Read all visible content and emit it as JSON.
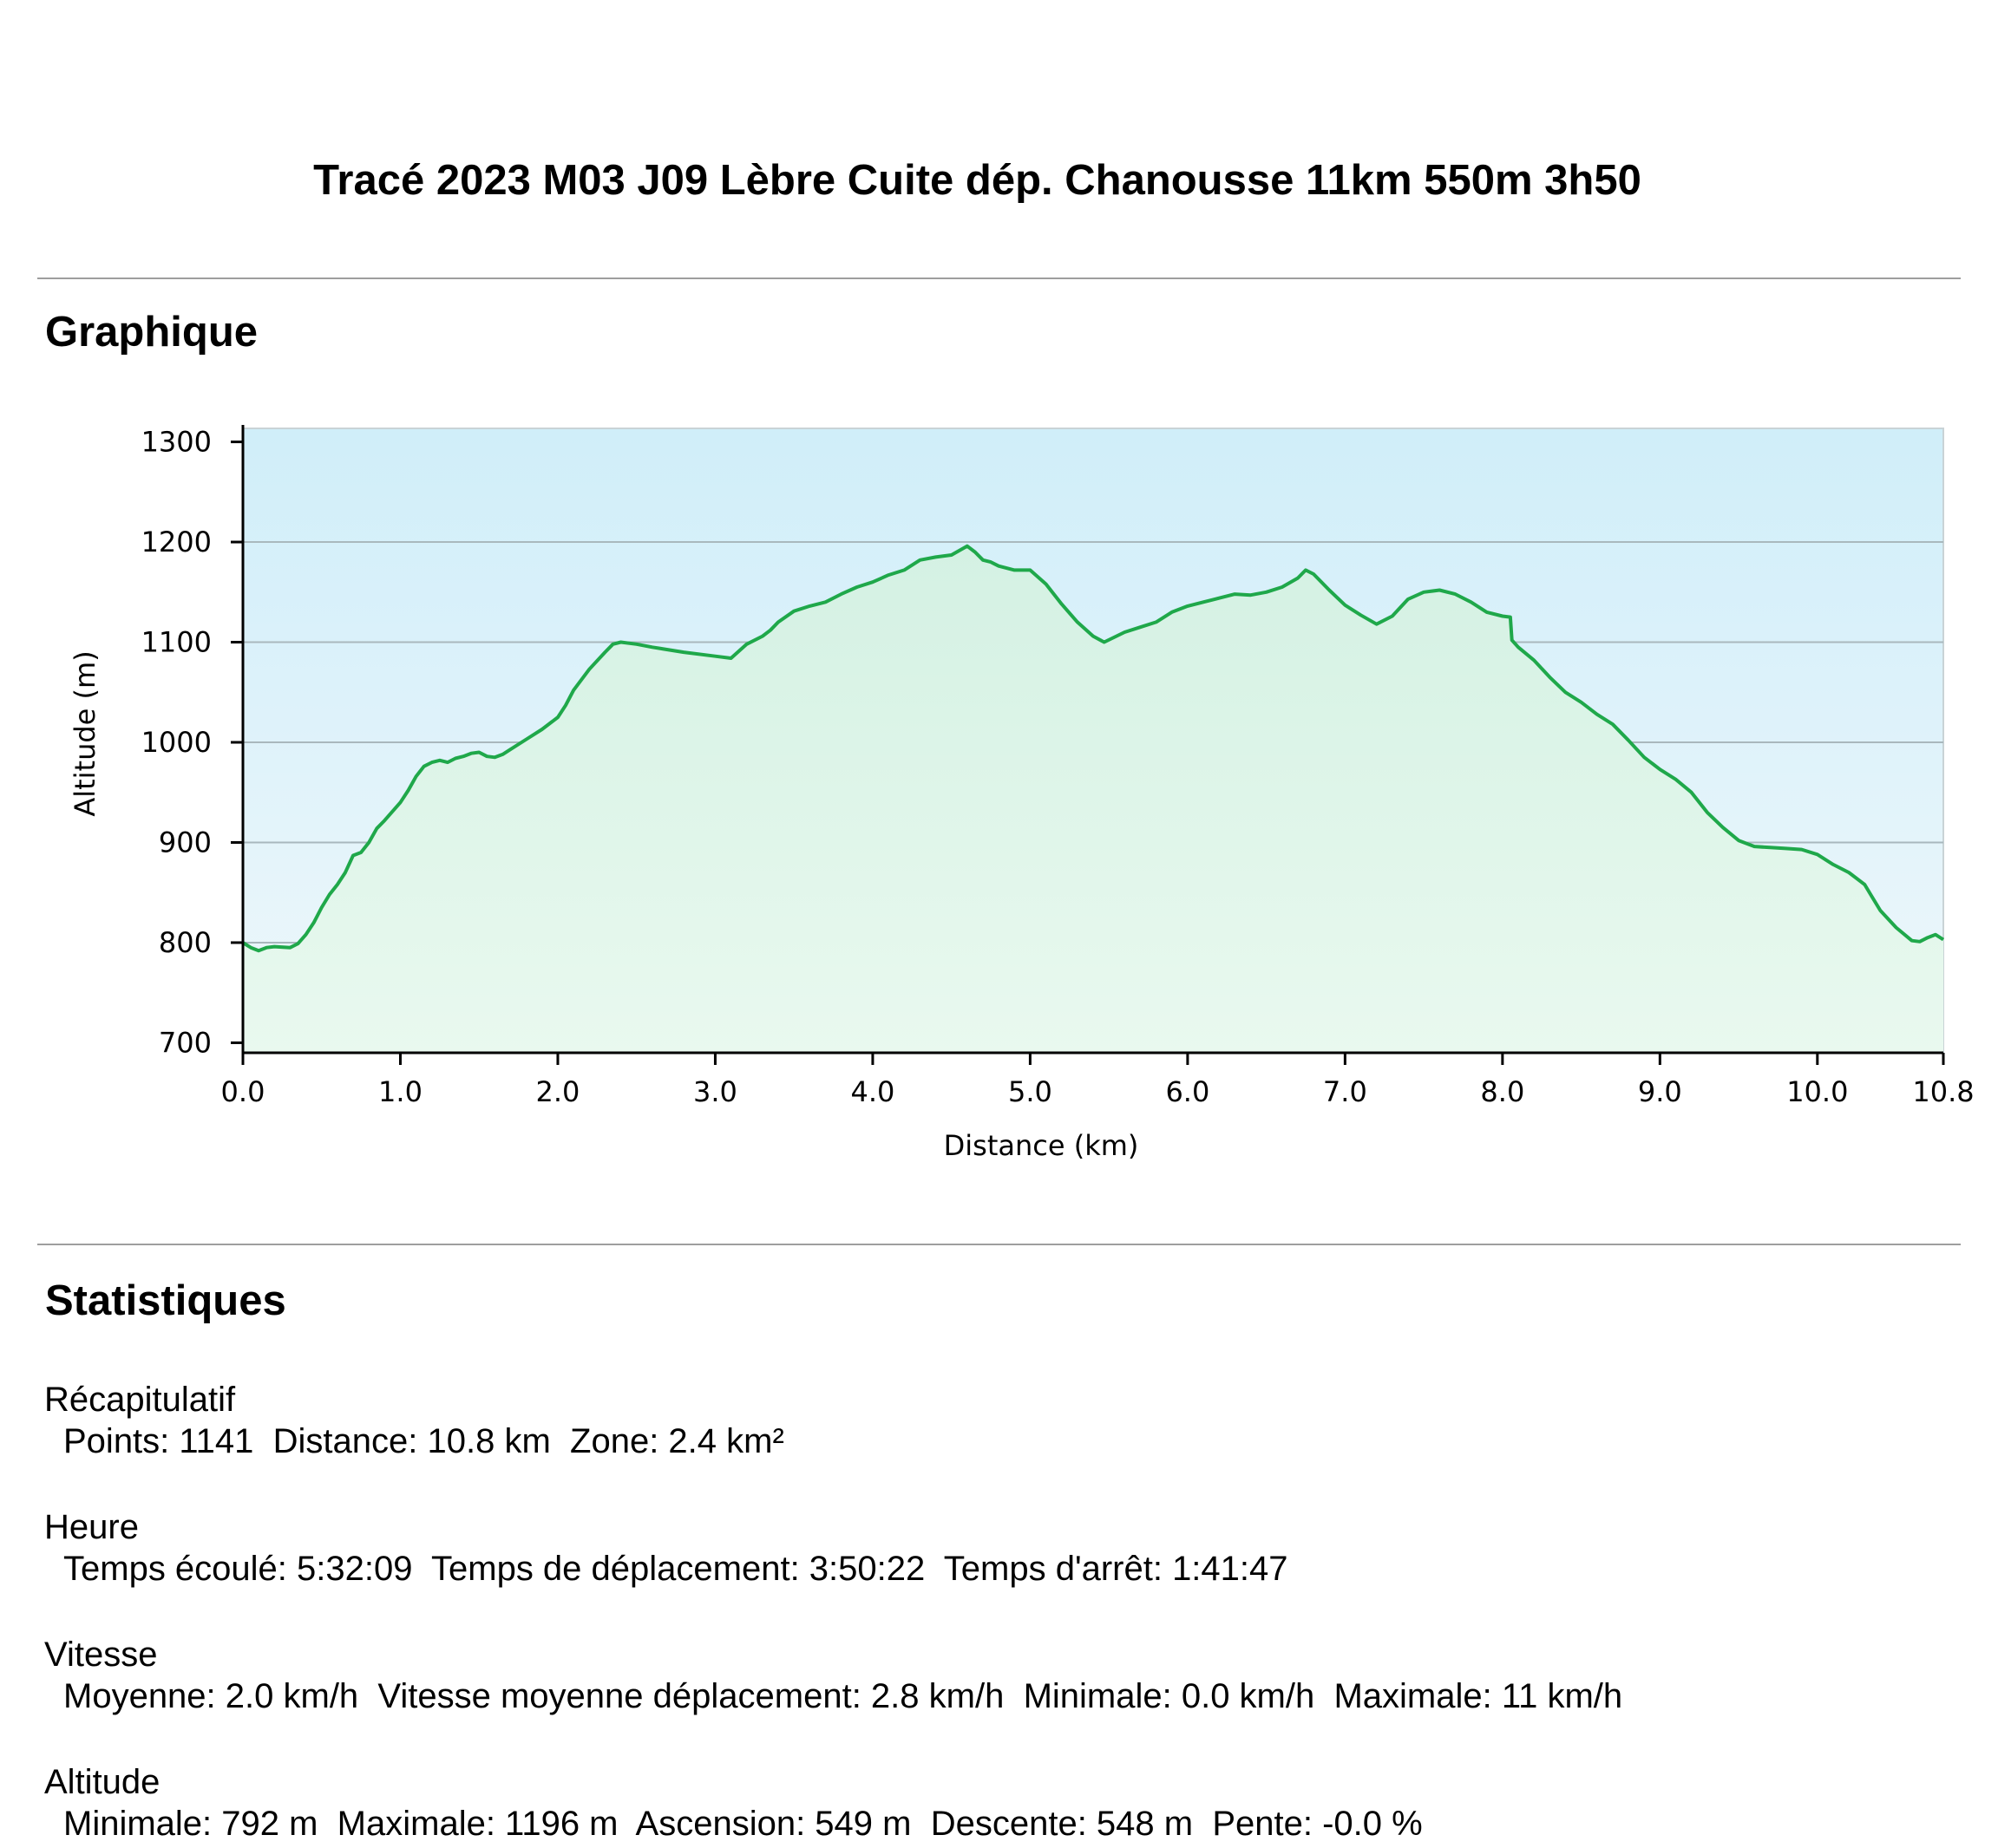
{
  "title": "Tracé 2023 M03 J09 Lèbre Cuite dép. Chanousse 11km 550m 3h50",
  "graph_section": {
    "heading": "Graphique"
  },
  "stats_section": {
    "heading": "Statistiques",
    "groups": [
      {
        "label": "Récapitulatif",
        "items": [
          "Points: 1141",
          "Distance: 10.8 km",
          "Zone: 2.4 km²"
        ]
      },
      {
        "label": "Heure",
        "items": [
          "Temps écoulé: 5:32:09",
          "Temps de déplacement: 3:50:22",
          "Temps d'arrêt: 1:41:47"
        ]
      },
      {
        "label": "Vitesse",
        "items": [
          "Moyenne: 2.0 km/h",
          "Vitesse moyenne déplacement: 2.8 km/h",
          "Minimale: 0.0 km/h",
          "Maximale: 11 km/h"
        ]
      },
      {
        "label": "Altitude",
        "items": [
          "Minimale: 792 m",
          "Maximale: 1196 m",
          "Ascension: 549 m",
          "Descente: 548 m",
          "Pente: -0.0 %"
        ]
      }
    ]
  },
  "colors": {
    "line": "#1fa84a",
    "fill": "#d6f2e2",
    "sky_top": "#d0eef9",
    "sky_bottom": "#eef7fb",
    "grid": "#a9b8bd"
  },
  "chart_data": {
    "type": "area",
    "xlabel": "Distance",
    "xunit": "(km)",
    "ylabel": "Altitude (m)",
    "xlim": [
      0,
      10.8
    ],
    "ylim": [
      690,
      1310
    ],
    "xticks": [
      0,
      1,
      2,
      3,
      4,
      5,
      6,
      7,
      8,
      9,
      10,
      10.8
    ],
    "xtick_labels": [
      "0.0",
      "1.0",
      "2.0",
      "3.0",
      "4.0",
      "5.0",
      "6.0",
      "7.0",
      "8.0",
      "9.0",
      "10.0",
      "10.8"
    ],
    "yticks": [
      700,
      800,
      900,
      1000,
      1100,
      1200,
      1300
    ],
    "ytick_labels": [
      "700",
      "800",
      "900",
      "1000",
      "1100",
      "1200",
      "1300"
    ],
    "gridlines_y": [
      800,
      900,
      1000,
      1100,
      1200
    ],
    "x": [
      0,
      0.05,
      0.1,
      0.15,
      0.2,
      0.3,
      0.35,
      0.4,
      0.45,
      0.5,
      0.55,
      0.6,
      0.65,
      0.7,
      0.75,
      0.8,
      0.85,
      0.9,
      1.0,
      1.05,
      1.1,
      1.15,
      1.2,
      1.25,
      1.3,
      1.35,
      1.4,
      1.45,
      1.5,
      1.55,
      1.6,
      1.65,
      1.7,
      1.8,
      1.9,
      2.0,
      2.05,
      2.1,
      2.2,
      2.3,
      2.35,
      2.4,
      2.5,
      2.6,
      2.8,
      3.0,
      3.1,
      3.2,
      3.3,
      3.35,
      3.4,
      3.5,
      3.6,
      3.7,
      3.8,
      3.9,
      4.0,
      4.1,
      4.2,
      4.3,
      4.4,
      4.5,
      4.6,
      4.65,
      4.7,
      4.75,
      4.8,
      4.9,
      5.0,
      5.1,
      5.2,
      5.3,
      5.4,
      5.47,
      5.6,
      5.7,
      5.8,
      5.9,
      6.0,
      6.1,
      6.2,
      6.3,
      6.4,
      6.5,
      6.6,
      6.7,
      6.75,
      6.8,
      6.9,
      7.0,
      7.1,
      7.2,
      7.3,
      7.4,
      7.5,
      7.6,
      7.7,
      7.8,
      7.9,
      8.0,
      8.05,
      8.06,
      8.1,
      8.2,
      8.3,
      8.4,
      8.5,
      8.6,
      8.7,
      8.8,
      8.9,
      9.0,
      9.1,
      9.2,
      9.3,
      9.4,
      9.5,
      9.6,
      9.7,
      9.8,
      9.9,
      10.0,
      10.1,
      10.2,
      10.3,
      10.35,
      10.4,
      10.5,
      10.6,
      10.65,
      10.7,
      10.75,
      10.8
    ],
    "y": [
      800,
      795,
      792,
      795,
      796,
      795,
      799,
      808,
      820,
      835,
      848,
      858,
      870,
      887,
      890,
      900,
      914,
      922,
      940,
      952,
      966,
      976,
      980,
      982,
      980,
      984,
      986,
      989,
      990,
      986,
      985,
      988,
      993,
      1003,
      1013,
      1025,
      1037,
      1052,
      1073,
      1090,
      1098,
      1100,
      1098,
      1095,
      1090,
      1086,
      1084,
      1098,
      1106,
      1112,
      1120,
      1131,
      1136,
      1140,
      1148,
      1155,
      1160,
      1167,
      1172,
      1182,
      1185,
      1187,
      1196,
      1190,
      1182,
      1180,
      1176,
      1172,
      1172,
      1158,
      1138,
      1120,
      1106,
      1100,
      1110,
      1115,
      1120,
      1130,
      1136,
      1140,
      1144,
      1148,
      1147,
      1150,
      1155,
      1164,
      1172,
      1168,
      1152,
      1137,
      1127,
      1118,
      1126,
      1143,
      1150,
      1152,
      1148,
      1140,
      1130,
      1126,
      1125,
      1102,
      1095,
      1082,
      1065,
      1050,
      1040,
      1028,
      1018,
      1002,
      985,
      973,
      963,
      950,
      930,
      915,
      902,
      896,
      895,
      894,
      893,
      888,
      878,
      870,
      858,
      845,
      832,
      815,
      802,
      801,
      805,
      808,
      803
    ]
  }
}
